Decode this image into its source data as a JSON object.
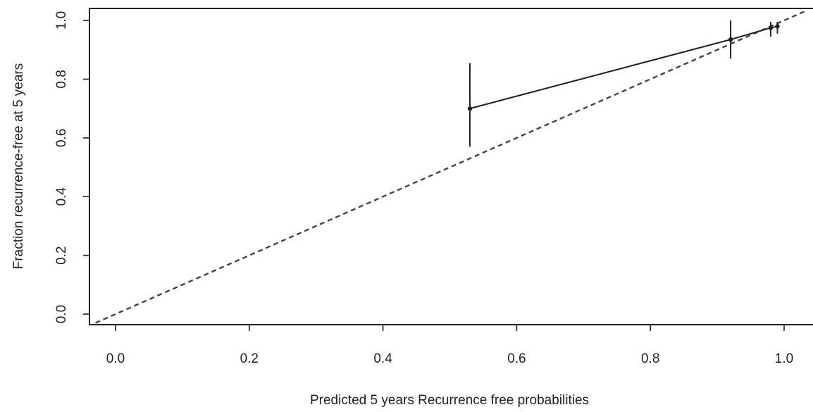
{
  "chart_data": {
    "type": "line",
    "title": "",
    "xlabel": "Predicted 5 years Recurrence free probabilities",
    "ylabel": "Fraction recurrence-free at 5 years",
    "xlim": [
      -0.03,
      1.03
    ],
    "ylim": [
      -0.03,
      1.04
    ],
    "xticks": [
      0.0,
      0.2,
      0.4,
      0.6,
      0.8,
      1.0
    ],
    "xtick_labels": [
      "0.0",
      "0.2",
      "0.4",
      "0.6",
      "0.8",
      "1.0"
    ],
    "yticks": [
      0.0,
      0.2,
      0.4,
      0.6,
      0.8,
      1.0
    ],
    "ytick_labels": [
      "0.0",
      "0.2",
      "0.4",
      "0.6",
      "0.8",
      "1.0"
    ],
    "grid": false,
    "legend": "none",
    "series": [
      {
        "style": "solid",
        "color": "#222222",
        "x": [
          0.53,
          0.92,
          0.98,
          0.99
        ],
        "y": [
          0.7,
          0.935,
          0.975,
          0.98
        ],
        "err_lower": [
          0.57,
          0.87,
          0.945,
          0.955
        ],
        "err_upper": [
          0.855,
          1.0,
          0.995,
          0.995
        ]
      }
    ],
    "reference_line": {
      "style": "dashed",
      "color": "#444444",
      "x": [
        -0.03,
        1.03
      ],
      "y": [
        -0.03,
        1.03
      ]
    }
  }
}
